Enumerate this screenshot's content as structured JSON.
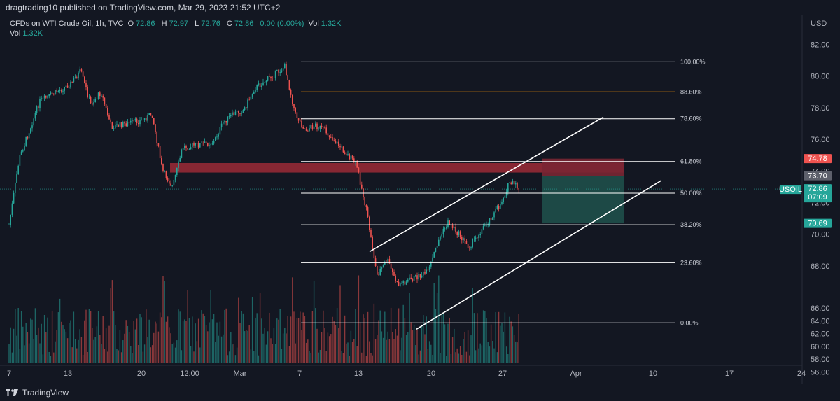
{
  "header": {
    "published_by": "dragtrading10 published on TradingView.com, Mar 29, 2023 21:52 UTC+2"
  },
  "legend": {
    "symbol": "CFDs on WTI Crude Oil, 1h, TVC",
    "open_label": "O",
    "open": "72.86",
    "high_label": "H",
    "high": "72.97",
    "low_label": "L",
    "low": "72.76",
    "close_label": "C",
    "close": "72.86",
    "change": "0.00 (0.00%)",
    "vol_label": "Vol",
    "vol": "1.32K"
  },
  "volume_legend": {
    "label": "Vol",
    "value": "1.32K"
  },
  "footer": {
    "brand": "TradingView"
  },
  "colors": {
    "background": "#131722",
    "up": "#26a69a",
    "down": "#ef5350",
    "fib_line": "#ffffff",
    "fib_highlight": "#ff9800",
    "resistance_zone": "#9c2a36",
    "short_target": "#1f4f4a",
    "short_stop": "#7a2633"
  },
  "chart_data": {
    "type": "candlestick",
    "title": "CFDs on WTI Crude Oil, 1h, TVC",
    "symbol": "USOIL",
    "currency": "USD",
    "ylim": [
      55,
      83
    ],
    "y_ticks": [
      "82.00",
      "80.00",
      "78.00",
      "76.00",
      "74.00",
      "72.00",
      "70.00",
      "68.00",
      "66.00",
      "64.00",
      "62.00",
      "60.00",
      "58.00",
      "56.00"
    ],
    "x_ticks": [
      "7",
      "13",
      "20",
      "12:00",
      "Mar",
      "7",
      "13",
      "20",
      "27",
      "Apr",
      "10",
      "17",
      "24"
    ],
    "price_path": [
      {
        "date": "Feb 7",
        "price": 70.6
      },
      {
        "date": "Feb 8",
        "price": 74.8
      },
      {
        "date": "Feb 10",
        "price": 78.4
      },
      {
        "date": "Feb 13",
        "price": 79.5
      },
      {
        "date": "Feb 14",
        "price": 80.3
      },
      {
        "date": "Feb 15",
        "price": 78.2
      },
      {
        "date": "Feb 16",
        "price": 79.0
      },
      {
        "date": "Feb 17",
        "price": 76.8
      },
      {
        "date": "Feb 20",
        "price": 77.2
      },
      {
        "date": "Feb 21",
        "price": 77.6
      },
      {
        "date": "Feb 22",
        "price": 74.0
      },
      {
        "date": "Feb 23",
        "price": 73.0
      },
      {
        "date": "Feb 24",
        "price": 75.5
      },
      {
        "date": "Feb 27",
        "price": 75.8
      },
      {
        "date": "Feb 28",
        "price": 77.1
      },
      {
        "date": "Mar 1",
        "price": 77.6
      },
      {
        "date": "Mar 2",
        "price": 77.9
      },
      {
        "date": "Mar 3",
        "price": 79.2
      },
      {
        "date": "Mar 6",
        "price": 80.6
      },
      {
        "date": "Mar 7",
        "price": 77.6
      },
      {
        "date": "Mar 8",
        "price": 76.6
      },
      {
        "date": "Mar 9",
        "price": 76.9
      },
      {
        "date": "Mar 10",
        "price": 76.5
      },
      {
        "date": "Mar 13",
        "price": 74.4
      },
      {
        "date": "Mar 14",
        "price": 71.4
      },
      {
        "date": "Mar 15",
        "price": 67.4
      },
      {
        "date": "Mar 16",
        "price": 68.4
      },
      {
        "date": "Mar 17",
        "price": 66.8
      },
      {
        "date": "Mar 20",
        "price": 67.6
      },
      {
        "date": "Mar 21",
        "price": 69.6
      },
      {
        "date": "Mar 22",
        "price": 70.8
      },
      {
        "date": "Mar 23",
        "price": 70.0
      },
      {
        "date": "Mar 24",
        "price": 69.2
      },
      {
        "date": "Mar 27",
        "price": 71.8
      },
      {
        "date": "Mar 28",
        "price": 73.3
      },
      {
        "date": "Mar 29",
        "price": 72.86
      }
    ],
    "fibonacci_levels": [
      {
        "label": "100.00%",
        "price": 80.9
      },
      {
        "label": "88.60%",
        "price": 79.0,
        "highlight": true
      },
      {
        "label": "78.60%",
        "price": 77.3
      },
      {
        "label": "61.80%",
        "price": 74.6
      },
      {
        "label": "50.00%",
        "price": 72.6
      },
      {
        "label": "38.20%",
        "price": 70.6
      },
      {
        "label": "23.60%",
        "price": 68.2
      },
      {
        "label": "0.00%",
        "price": 64.4
      }
    ],
    "price_labels": [
      {
        "value": "74.78",
        "color": "#ef5350"
      },
      {
        "value": "73.70",
        "color": "#5d606b"
      },
      {
        "value": "72.86",
        "color": "#26a69a",
        "sub": "07:09",
        "tag": "USOIL"
      },
      {
        "value": "70.69",
        "color": "#26a69a"
      }
    ],
    "resistance_zone": {
      "from": 73.9,
      "to": 74.5,
      "start": "Feb 23",
      "end": "Apr 5"
    },
    "short_position": {
      "entry": 73.7,
      "stop": 74.78,
      "target": 70.69,
      "start": "Mar 29",
      "end": "Apr 7"
    },
    "channel": {
      "upper": [
        {
          "date": "Mar 16",
          "price": 68.9
        },
        {
          "date": "Apr 5",
          "price": 77.4
        }
      ],
      "lower": [
        {
          "date": "Mar 19",
          "price": 64.0
        },
        {
          "date": "Apr 8",
          "price": 73.4
        }
      ]
    },
    "volume_range": "0–1.32K",
    "grid": false,
    "legend_position": "top-left"
  }
}
